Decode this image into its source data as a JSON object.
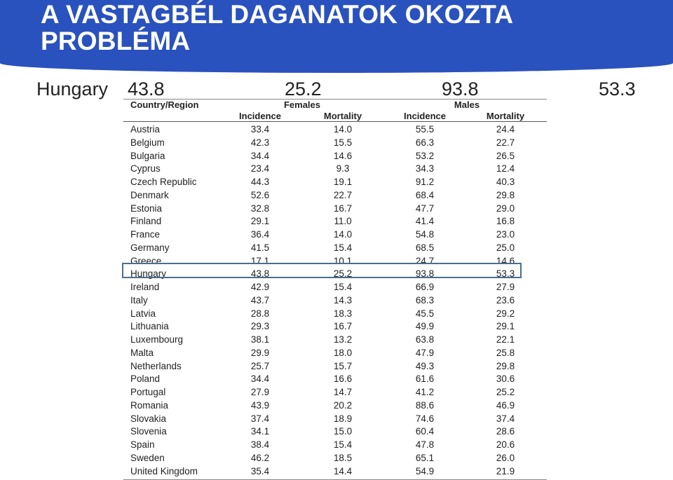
{
  "title": "A VASTAGBÉL DAGANATOK OKOZTA PROBLÉMA",
  "highlight_row": {
    "country": "Hungary",
    "female_incidence": "43.8",
    "female_mortality": "25.2",
    "male_incidence": "93.8",
    "male_mortality": "53.3"
  },
  "table": {
    "col_country": "Country/Region",
    "group_females": "Females",
    "group_males": "Males",
    "sub_incidence": "Incidence",
    "sub_mortality": "Mortality",
    "rows": [
      {
        "name": "Austria",
        "fi": "33.4",
        "fm": "14.0",
        "mi": "55.5",
        "mm": "24.4"
      },
      {
        "name": "Belgium",
        "fi": "42.3",
        "fm": "15.5",
        "mi": "66.3",
        "mm": "22.7"
      },
      {
        "name": "Bulgaria",
        "fi": "34.4",
        "fm": "14.6",
        "mi": "53.2",
        "mm": "26.5"
      },
      {
        "name": "Cyprus",
        "fi": "23.4",
        "fm": "9.3",
        "mi": "34.3",
        "mm": "12.4"
      },
      {
        "name": "Czech Republic",
        "fi": "44.3",
        "fm": "19.1",
        "mi": "91.2",
        "mm": "40.3"
      },
      {
        "name": "Denmark",
        "fi": "52.6",
        "fm": "22.7",
        "mi": "68.4",
        "mm": "29.8"
      },
      {
        "name": "Estonia",
        "fi": "32.8",
        "fm": "16.7",
        "mi": "47.7",
        "mm": "29.0"
      },
      {
        "name": "Finland",
        "fi": "29.1",
        "fm": "11.0",
        "mi": "41.4",
        "mm": "16.8"
      },
      {
        "name": "France",
        "fi": "36.4",
        "fm": "14.0",
        "mi": "54.8",
        "mm": "23.0"
      },
      {
        "name": "Germany",
        "fi": "41.5",
        "fm": "15.4",
        "mi": "68.5",
        "mm": "25.0"
      },
      {
        "name": "Greece",
        "fi": "17.1",
        "fm": "10.1",
        "mi": "24.7",
        "mm": "14.6"
      },
      {
        "name": "Hungary",
        "fi": "43.8",
        "fm": "25.2",
        "mi": "93.8",
        "mm": "53.3"
      },
      {
        "name": "Ireland",
        "fi": "42.9",
        "fm": "15.4",
        "mi": "66.9",
        "mm": "27.9"
      },
      {
        "name": "Italy",
        "fi": "43.7",
        "fm": "14.3",
        "mi": "68.3",
        "mm": "23.6"
      },
      {
        "name": "Latvia",
        "fi": "28.8",
        "fm": "18.3",
        "mi": "45.5",
        "mm": "29.2"
      },
      {
        "name": "Lithuania",
        "fi": "29.3",
        "fm": "16.7",
        "mi": "49.9",
        "mm": "29.1"
      },
      {
        "name": "Luxembourg",
        "fi": "38.1",
        "fm": "13.2",
        "mi": "63.8",
        "mm": "22.1"
      },
      {
        "name": "Malta",
        "fi": "29.9",
        "fm": "18.0",
        "mi": "47.9",
        "mm": "25.8"
      },
      {
        "name": "Netherlands",
        "fi": "25.7",
        "fm": "15.7",
        "mi": "49.3",
        "mm": "29.8"
      },
      {
        "name": "Poland",
        "fi": "34.4",
        "fm": "16.6",
        "mi": "61.6",
        "mm": "30.6"
      },
      {
        "name": "Portugal",
        "fi": "27.9",
        "fm": "14.7",
        "mi": "41.2",
        "mm": "25.2"
      },
      {
        "name": "Romania",
        "fi": "43.9",
        "fm": "20.2",
        "mi": "88.6",
        "mm": "46.9"
      },
      {
        "name": "Slovakia",
        "fi": "37.4",
        "fm": "18.9",
        "mi": "74.6",
        "mm": "37.4"
      },
      {
        "name": "Slovenia",
        "fi": "34.1",
        "fm": "15.0",
        "mi": "60.4",
        "mm": "28.6"
      },
      {
        "name": "Spain",
        "fi": "38.4",
        "fm": "15.4",
        "mi": "47.8",
        "mm": "20.6"
      },
      {
        "name": "Sweden",
        "fi": "46.2",
        "fm": "18.5",
        "mi": "65.1",
        "mm": "26.0"
      },
      {
        "name": "United Kingdom",
        "fi": "35.4",
        "fm": "14.4",
        "mi": "54.9",
        "mm": "21.9"
      }
    ]
  },
  "colors": {
    "header_bg": "#2a52be",
    "highlight_border": "#4a6d93"
  }
}
